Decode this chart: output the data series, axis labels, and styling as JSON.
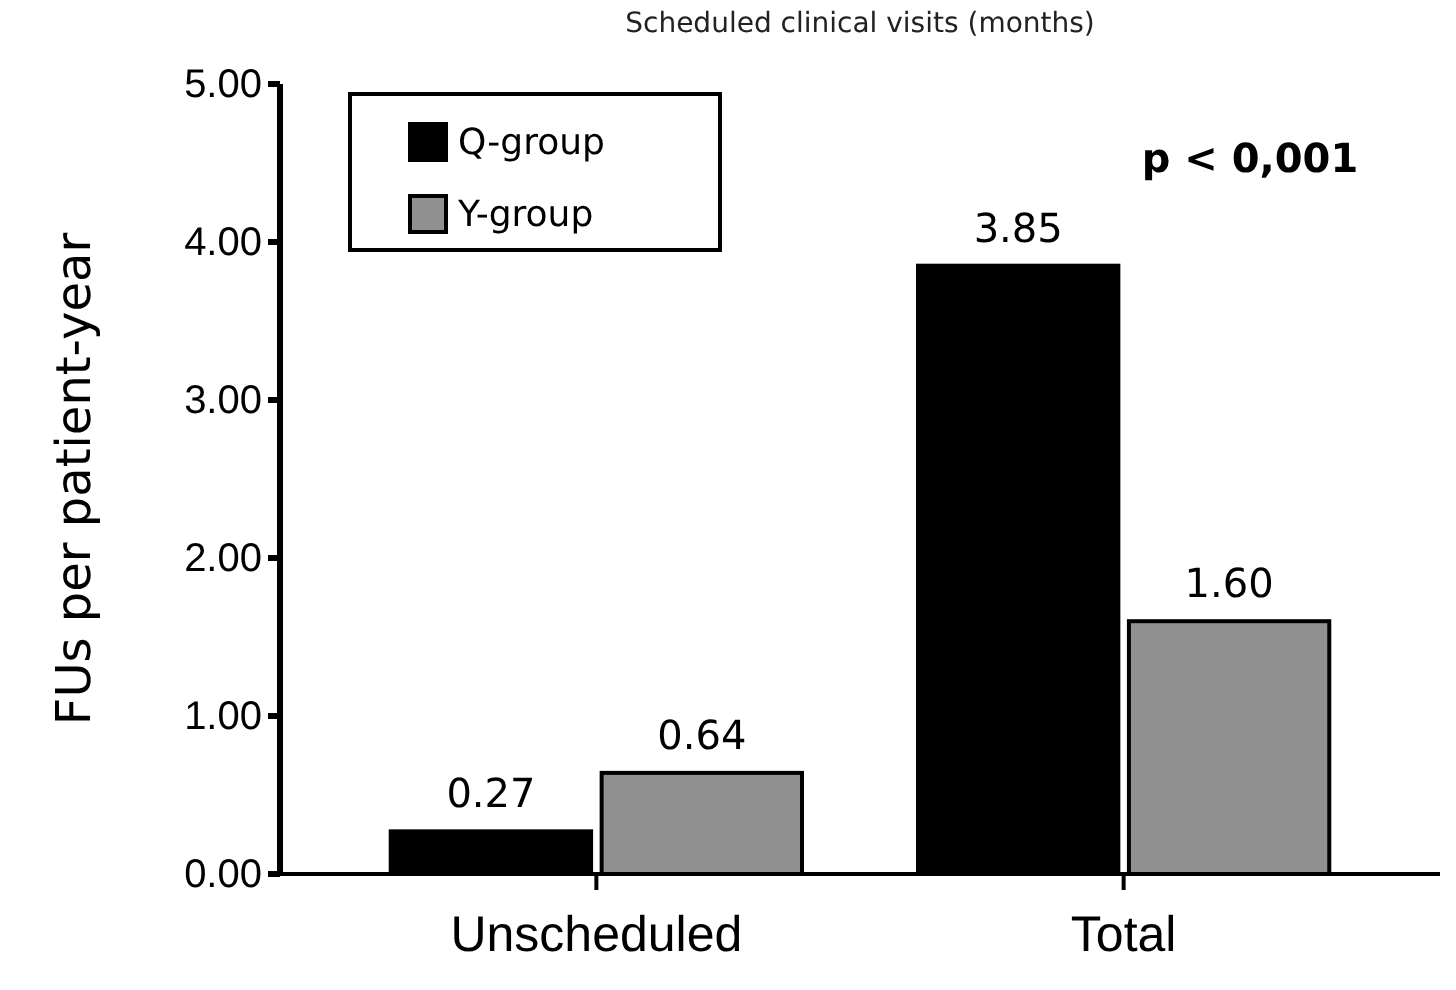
{
  "chart_data": {
    "type": "bar",
    "title": "Scheduled clinical visits (months)",
    "ylabel": "FUs per patient-year",
    "categories": [
      "Unscheduled",
      "Total"
    ],
    "series": [
      {
        "name": "Q-group",
        "color": "#000000",
        "values": [
          0.27,
          3.85
        ],
        "value_labels": [
          "0.27",
          "3.85"
        ]
      },
      {
        "name": "Y-group",
        "color": "#909090",
        "values": [
          0.64,
          1.6
        ],
        "value_labels": [
          "0.64",
          "1.60"
        ]
      }
    ],
    "ylim": [
      0,
      5
    ],
    "yticks": [
      {
        "value": 0,
        "label": "0.00"
      },
      {
        "value": 1,
        "label": "1.00"
      },
      {
        "value": 2,
        "label": "2.00"
      },
      {
        "value": 3,
        "label": "3.00"
      },
      {
        "value": 4,
        "label": "4.00"
      },
      {
        "value": 5,
        "label": "5.00"
      }
    ],
    "legend": "top left",
    "grid": false,
    "annotations": [
      "p < 0,001"
    ]
  }
}
